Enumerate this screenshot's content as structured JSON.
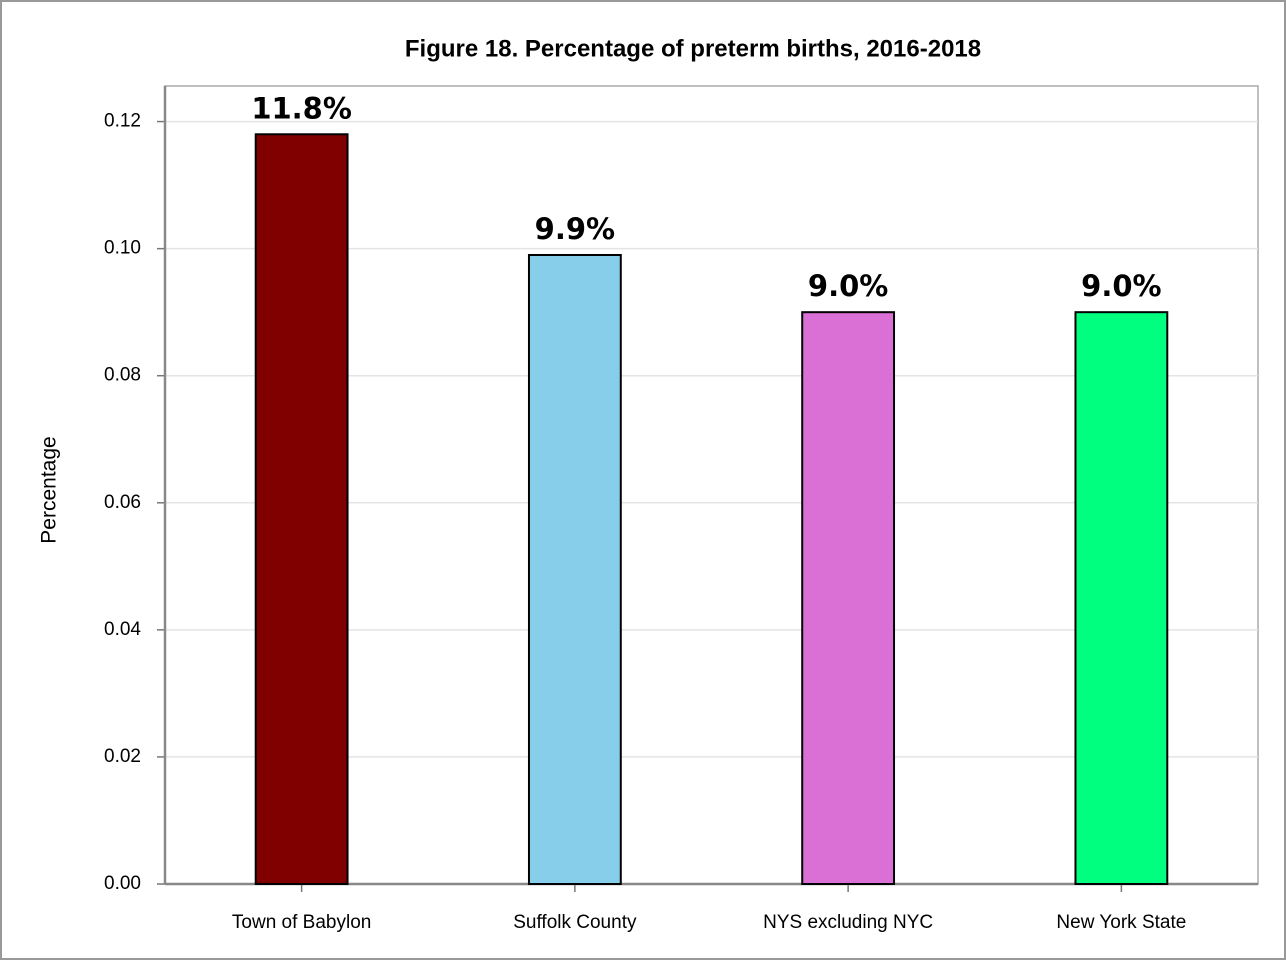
{
  "chart_data": {
    "type": "bar",
    "title": "Figure 18. Percentage of preterm births, 2016-2018",
    "y_label": "Percentage",
    "categories": [
      "Town of Babylon",
      "Suffolk County",
      "NYS excluding NYC",
      "New York State"
    ],
    "values": [
      0.118,
      0.099,
      0.09,
      0.09
    ],
    "value_labels": [
      "11.8%",
      "9.9%",
      "9.0%",
      "9.0%"
    ],
    "colors": [
      "#800000",
      "#87ceeb",
      "#da70d6",
      "#00ff7f"
    ],
    "ylim": [
      0,
      0.1256
    ],
    "yticks": [
      {
        "value": 0,
        "label": "0.00"
      },
      {
        "value": 0.02,
        "label": "0.02"
      },
      {
        "value": 0.04,
        "label": "0.04"
      },
      {
        "value": 0.06,
        "label": "0.06"
      },
      {
        "value": 0.08,
        "label": "0.08"
      },
      {
        "value": 0.1,
        "label": "0.10"
      },
      {
        "value": 0.12,
        "label": "0.12"
      }
    ],
    "grid": true
  }
}
